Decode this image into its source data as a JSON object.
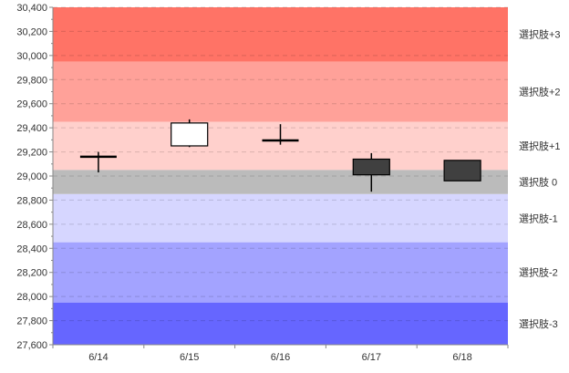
{
  "chart_data": {
    "type": "candlestick",
    "title": "",
    "xlabel": "",
    "ylabel": "",
    "ylim": [
      27600,
      30400
    ],
    "y_ticks": [
      27600,
      27800,
      28000,
      28200,
      28400,
      28600,
      28800,
      29000,
      29200,
      29400,
      29600,
      29800,
      30000,
      30200,
      30400
    ],
    "y_tick_labels": [
      "27,600",
      "27,800",
      "28,000",
      "28,200",
      "28,400",
      "28,600",
      "28,800",
      "29,000",
      "29,200",
      "29,400",
      "29,600",
      "29,800",
      "30,000",
      "30,200",
      "30,400"
    ],
    "grid": true,
    "categories": [
      "6/14",
      "6/15",
      "6/16",
      "6/17",
      "6/18"
    ],
    "candles": [
      {
        "open": 29160,
        "high": 29200,
        "low": 29030,
        "close": 29160
      },
      {
        "open": 29250,
        "high": 29470,
        "low": 29240,
        "close": 29440
      },
      {
        "open": 29300,
        "high": 29430,
        "low": 29260,
        "close": 29290
      },
      {
        "open": 29140,
        "high": 29190,
        "low": 28870,
        "close": 29010
      },
      {
        "open": 29130,
        "high": 29130,
        "low": 28960,
        "close": 28960
      }
    ],
    "candle_colors": {
      "up": "#ffffff",
      "down": "#404040",
      "outline": "#000000"
    },
    "bands": [
      {
        "label": "選択肢+3",
        "from": 29950,
        "to": 30400,
        "color": "#ff7366"
      },
      {
        "label": "選択肢+2",
        "from": 29450,
        "to": 29950,
        "color": "#ffa199"
      },
      {
        "label": "選択肢+1",
        "from": 29050,
        "to": 29450,
        "color": "#ffd0cc"
      },
      {
        "label": "選択肢 0",
        "from": 28850,
        "to": 29050,
        "color": "#bbbbbb"
      },
      {
        "label": "選択肢-1",
        "from": 28450,
        "to": 28850,
        "color": "#d6d6ff"
      },
      {
        "label": "選択肢-2",
        "from": 27950,
        "to": 28450,
        "color": "#a3a3ff"
      },
      {
        "label": "選択肢-3",
        "from": 27600,
        "to": 27950,
        "color": "#6666ff"
      }
    ]
  }
}
